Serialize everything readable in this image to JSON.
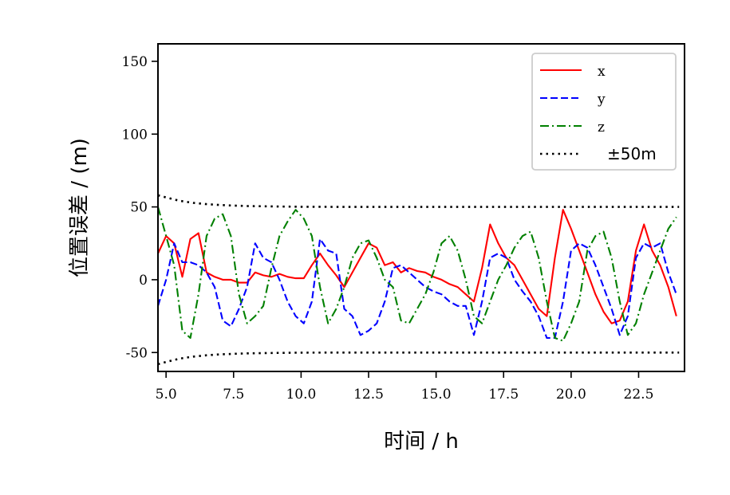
{
  "chart_data": {
    "type": "line",
    "title": "",
    "xlabel": "时间 / h",
    "ylabel": "位置误差 / (m)",
    "xlim": [
      4.7,
      24.2
    ],
    "ylim": [
      -63,
      162
    ],
    "xticks": [
      5.0,
      7.5,
      10.0,
      12.5,
      15.0,
      17.5,
      20.0,
      22.5
    ],
    "xtick_labels": [
      "5.0",
      "7.5",
      "10.0",
      "12.5",
      "15.0",
      "17.5",
      "20.0",
      "22.5"
    ],
    "yticks": [
      -50,
      0,
      50,
      100,
      150
    ],
    "ytick_labels": [
      "-50",
      "0",
      "50",
      "100",
      "150"
    ],
    "grid": false,
    "legend_position": "top-right",
    "series": [
      {
        "name": "x",
        "color": "#ff0000",
        "style": "solid",
        "x": [
          4.7,
          5.0,
          5.3,
          5.6,
          5.9,
          6.2,
          6.5,
          6.8,
          7.1,
          7.4,
          7.7,
          8.0,
          8.3,
          8.6,
          8.9,
          9.2,
          9.5,
          9.8,
          10.1,
          10.4,
          10.7,
          11.0,
          11.3,
          11.6,
          11.9,
          12.2,
          12.5,
          12.8,
          13.1,
          13.4,
          13.7,
          14.0,
          14.3,
          14.6,
          14.9,
          15.2,
          15.5,
          15.8,
          16.1,
          16.4,
          16.7,
          17.0,
          17.3,
          17.6,
          17.9,
          18.2,
          18.5,
          18.8,
          19.1,
          19.4,
          19.7,
          20.0,
          20.3,
          20.6,
          20.9,
          21.2,
          21.5,
          21.8,
          22.1,
          22.4,
          22.7,
          23.0,
          23.3,
          23.6,
          23.9
        ],
        "y": [
          18,
          30,
          25,
          2,
          28,
          32,
          5,
          2,
          0,
          0,
          -2,
          -2,
          5,
          3,
          2,
          4,
          2,
          1,
          1,
          10,
          18,
          10,
          3,
          -5,
          5,
          15,
          25,
          22,
          10,
          12,
          5,
          8,
          6,
          5,
          2,
          0,
          -3,
          -5,
          -10,
          -15,
          8,
          38,
          25,
          15,
          10,
          0,
          -10,
          -20,
          -25,
          15,
          48,
          35,
          20,
          5,
          -10,
          -22,
          -30,
          -28,
          -15,
          20,
          38,
          20,
          10,
          -5,
          -25
        ]
      },
      {
        "name": "y",
        "color": "#0000ff",
        "style": "dashed",
        "x": [
          4.7,
          5.0,
          5.3,
          5.6,
          5.9,
          6.2,
          6.5,
          6.8,
          7.1,
          7.4,
          7.7,
          8.0,
          8.3,
          8.6,
          8.9,
          9.2,
          9.5,
          9.8,
          10.1,
          10.4,
          10.7,
          11.0,
          11.3,
          11.6,
          11.9,
          12.2,
          12.5,
          12.8,
          13.1,
          13.4,
          13.7,
          14.0,
          14.3,
          14.6,
          14.9,
          15.2,
          15.5,
          15.8,
          16.1,
          16.4,
          16.7,
          17.0,
          17.3,
          17.6,
          17.9,
          18.2,
          18.5,
          18.8,
          19.1,
          19.4,
          19.7,
          20.0,
          20.3,
          20.6,
          20.9,
          21.2,
          21.5,
          21.8,
          22.1,
          22.4,
          22.7,
          23.0,
          23.3,
          23.6,
          23.9
        ],
        "y": [
          -18,
          0,
          25,
          12,
          12,
          10,
          5,
          -5,
          -28,
          -32,
          -20,
          -5,
          25,
          15,
          12,
          0,
          -15,
          -25,
          -30,
          -15,
          28,
          20,
          18,
          -20,
          -25,
          -38,
          -35,
          -30,
          -15,
          8,
          10,
          5,
          0,
          -5,
          -8,
          -10,
          -15,
          -18,
          -18,
          -38,
          -15,
          15,
          18,
          15,
          0,
          -8,
          -15,
          -25,
          -40,
          -40,
          -15,
          20,
          25,
          22,
          10,
          -5,
          -20,
          -38,
          -25,
          15,
          25,
          22,
          25,
          5,
          -10
        ]
      },
      {
        "name": "z",
        "color": "#008000",
        "style": "dashdot",
        "x": [
          4.7,
          5.0,
          5.3,
          5.6,
          5.9,
          6.2,
          6.5,
          6.8,
          7.1,
          7.4,
          7.7,
          8.0,
          8.3,
          8.6,
          8.9,
          9.2,
          9.5,
          9.8,
          10.1,
          10.4,
          10.7,
          11.0,
          11.3,
          11.6,
          11.9,
          12.2,
          12.5,
          12.8,
          13.1,
          13.4,
          13.7,
          14.0,
          14.3,
          14.6,
          14.9,
          15.2,
          15.5,
          15.8,
          16.1,
          16.4,
          16.7,
          17.0,
          17.3,
          17.6,
          17.9,
          18.2,
          18.5,
          18.8,
          19.1,
          19.4,
          19.7,
          20.0,
          20.3,
          20.6,
          20.9,
          21.2,
          21.5,
          21.8,
          22.1,
          22.4,
          22.7,
          23.0,
          23.3,
          23.6,
          23.9
        ],
        "y": [
          50,
          30,
          10,
          -35,
          -40,
          -10,
          30,
          42,
          45,
          30,
          -10,
          -30,
          -25,
          -18,
          8,
          30,
          40,
          48,
          42,
          30,
          -5,
          -30,
          -20,
          -5,
          15,
          25,
          27,
          15,
          0,
          -5,
          -28,
          -30,
          -20,
          -10,
          5,
          25,
          30,
          20,
          0,
          -25,
          -30,
          -15,
          0,
          10,
          22,
          30,
          33,
          15,
          -15,
          -40,
          -42,
          -30,
          -15,
          20,
          30,
          33,
          15,
          -15,
          -38,
          -30,
          -10,
          5,
          20,
          35,
          43
        ]
      },
      {
        "name": "±50m",
        "color": "#000000",
        "style": "dotted",
        "x": [
          4.7,
          5.0,
          5.5,
          6.0,
          6.5,
          7.0,
          7.5,
          8.0,
          9.0,
          10.0,
          12.0,
          15.0,
          18.0,
          21.0,
          24.0
        ],
        "y": [
          58,
          56.5,
          54.2,
          52.8,
          51.9,
          51.3,
          50.9,
          50.6,
          50.3,
          50.1,
          50.0,
          50.0,
          50.0,
          50.0,
          50.0
        ]
      },
      {
        "name": "",
        "color": "#000000",
        "style": "dotted",
        "x": [
          4.7,
          5.0,
          5.5,
          6.0,
          6.5,
          7.0,
          7.5,
          8.0,
          9.0,
          10.0,
          12.0,
          15.0,
          18.0,
          21.0,
          24.0
        ],
        "y": [
          -58,
          -56.5,
          -54.2,
          -52.8,
          -51.9,
          -51.3,
          -50.9,
          -50.6,
          -50.3,
          -50.1,
          -50.0,
          -50.0,
          -50.0,
          -50.0,
          -50.0
        ]
      }
    ],
    "legend": [
      {
        "label": "x",
        "color": "#ff0000",
        "style": "solid"
      },
      {
        "label": "y",
        "color": "#0000ff",
        "style": "dashed"
      },
      {
        "label": "z",
        "color": "#008000",
        "style": "dashdot"
      },
      {
        "label": "±50m",
        "color": "#000000",
        "style": "dotted"
      }
    ]
  }
}
